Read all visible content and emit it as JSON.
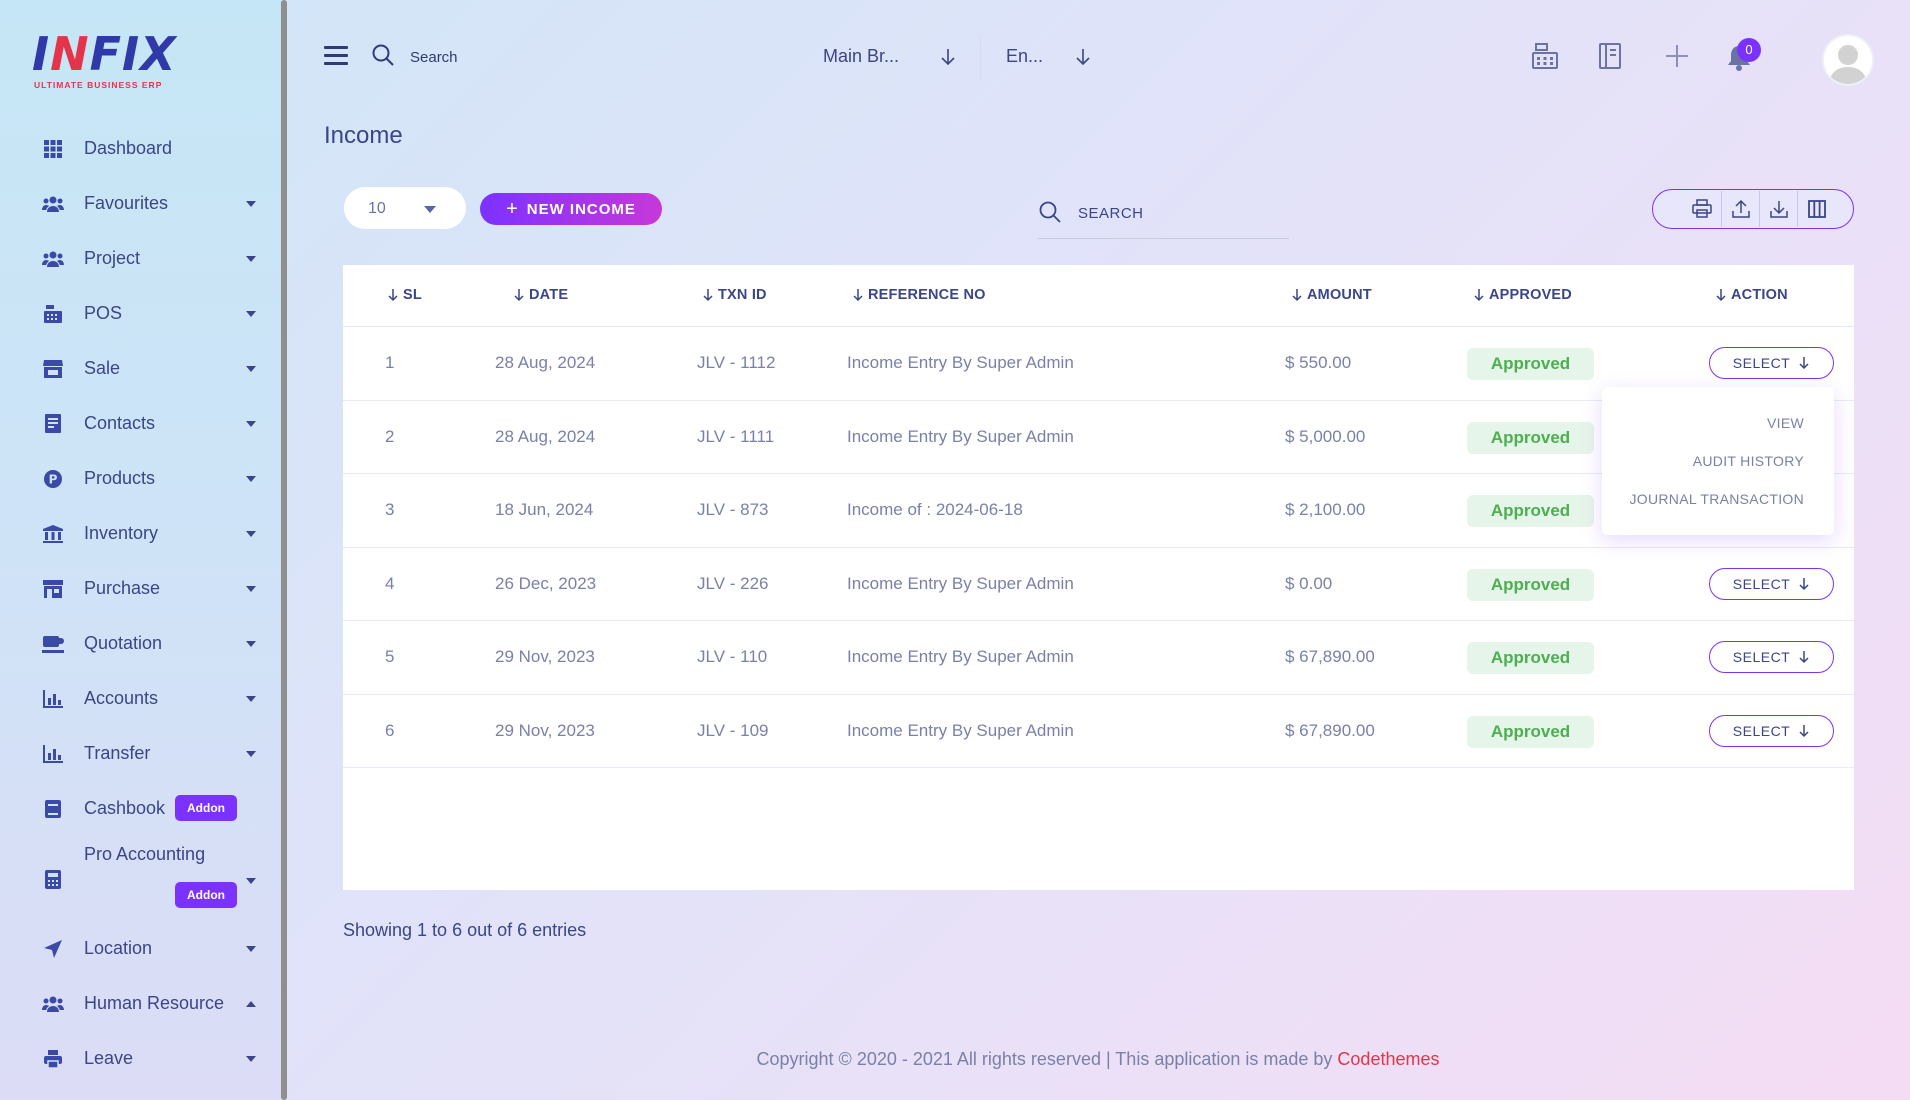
{
  "brand": {
    "logo_text_prefix": "I",
    "logo_text_red": "N",
    "logo_text_suffix": "FIX",
    "tagline": "ULTIMATE BUSINESS ERP",
    "accent": "#7c32ff",
    "brand_red": "#e5344a"
  },
  "sidebar": {
    "items": [
      {
        "label": "Dashboard",
        "icon": "grid-icon",
        "caret": "none"
      },
      {
        "label": "Favourites",
        "icon": "users-icon",
        "caret": "down"
      },
      {
        "label": "Project",
        "icon": "users-icon",
        "caret": "down"
      },
      {
        "label": "POS",
        "icon": "cash-register-icon",
        "caret": "down"
      },
      {
        "label": "Sale",
        "icon": "store-icon",
        "caret": "down"
      },
      {
        "label": "Contacts",
        "icon": "contact-book-icon",
        "caret": "down"
      },
      {
        "label": "Products",
        "icon": "product-p-icon",
        "caret": "down"
      },
      {
        "label": "Inventory",
        "icon": "warehouse-icon",
        "caret": "down"
      },
      {
        "label": "Purchase",
        "icon": "shop-icon",
        "caret": "down"
      },
      {
        "label": "Quotation",
        "icon": "quote-icon",
        "caret": "down"
      },
      {
        "label": "Accounts",
        "icon": "bar-chart-icon",
        "caret": "down"
      },
      {
        "label": "Transfer",
        "icon": "bar-chart-icon",
        "caret": "down"
      },
      {
        "label": "Cashbook",
        "icon": "book-icon",
        "caret": "none",
        "badge": "Addon"
      },
      {
        "label": "Pro Accounting",
        "icon": "calculator-icon",
        "caret": "down",
        "badge": "Addon"
      },
      {
        "label": "Location",
        "icon": "location-arrow-icon",
        "caret": "down"
      },
      {
        "label": "Human Resource",
        "icon": "users-icon",
        "caret": "up"
      },
      {
        "label": "Leave",
        "icon": "printer-icon",
        "caret": "down"
      }
    ]
  },
  "topbar": {
    "search_placeholder": "Search",
    "branch": "Main Br...",
    "language": "En...",
    "notification_count": "0"
  },
  "page": {
    "title": "Income",
    "per_page": "10",
    "new_button": "NEW INCOME",
    "search_placeholder": "SEARCH"
  },
  "table": {
    "columns": [
      "SL",
      "DATE",
      "TXN ID",
      "REFERENCE NO",
      "AMOUNT",
      "APPROVED",
      "ACTION"
    ],
    "rows": [
      {
        "sl": "1",
        "date": "28 Aug, 2024",
        "txn": "JLV - 1112",
        "ref": "Income Entry By Super Admin",
        "amount": "$ 550.00",
        "status": "Approved",
        "action": "SELECT"
      },
      {
        "sl": "2",
        "date": "28 Aug, 2024",
        "txn": "JLV - 1111",
        "ref": "Income Entry By Super Admin",
        "amount": "$ 5,000.00",
        "status": "Approved",
        "action": "SELECT"
      },
      {
        "sl": "3",
        "date": "18 Jun, 2024",
        "txn": "JLV - 873",
        "ref": "Income of : 2024-06-18",
        "amount": "$ 2,100.00",
        "status": "Approved",
        "action": "SELECT"
      },
      {
        "sl": "4",
        "date": "26 Dec, 2023",
        "txn": "JLV - 226",
        "ref": "Income Entry By Super Admin",
        "amount": "$ 0.00",
        "status": "Approved",
        "action": "SELECT"
      },
      {
        "sl": "5",
        "date": "29 Nov, 2023",
        "txn": "JLV - 110",
        "ref": "Income Entry By Super Admin",
        "amount": "$ 67,890.00",
        "status": "Approved",
        "action": "SELECT"
      },
      {
        "sl": "6",
        "date": "29 Nov, 2023",
        "txn": "JLV - 109",
        "ref": "Income Entry By Super Admin",
        "amount": "$ 67,890.00",
        "status": "Approved",
        "action": "SELECT"
      }
    ],
    "dropdown": [
      "VIEW",
      "AUDIT HISTORY",
      "JOURNAL TRANSACTION"
    ],
    "showing": "Showing 1 to 6 out of 6 entries"
  },
  "footer": {
    "text": "Copyright © 2020 - 2021 All rights reserved | This application is made by ",
    "brand": "Codethemes"
  }
}
